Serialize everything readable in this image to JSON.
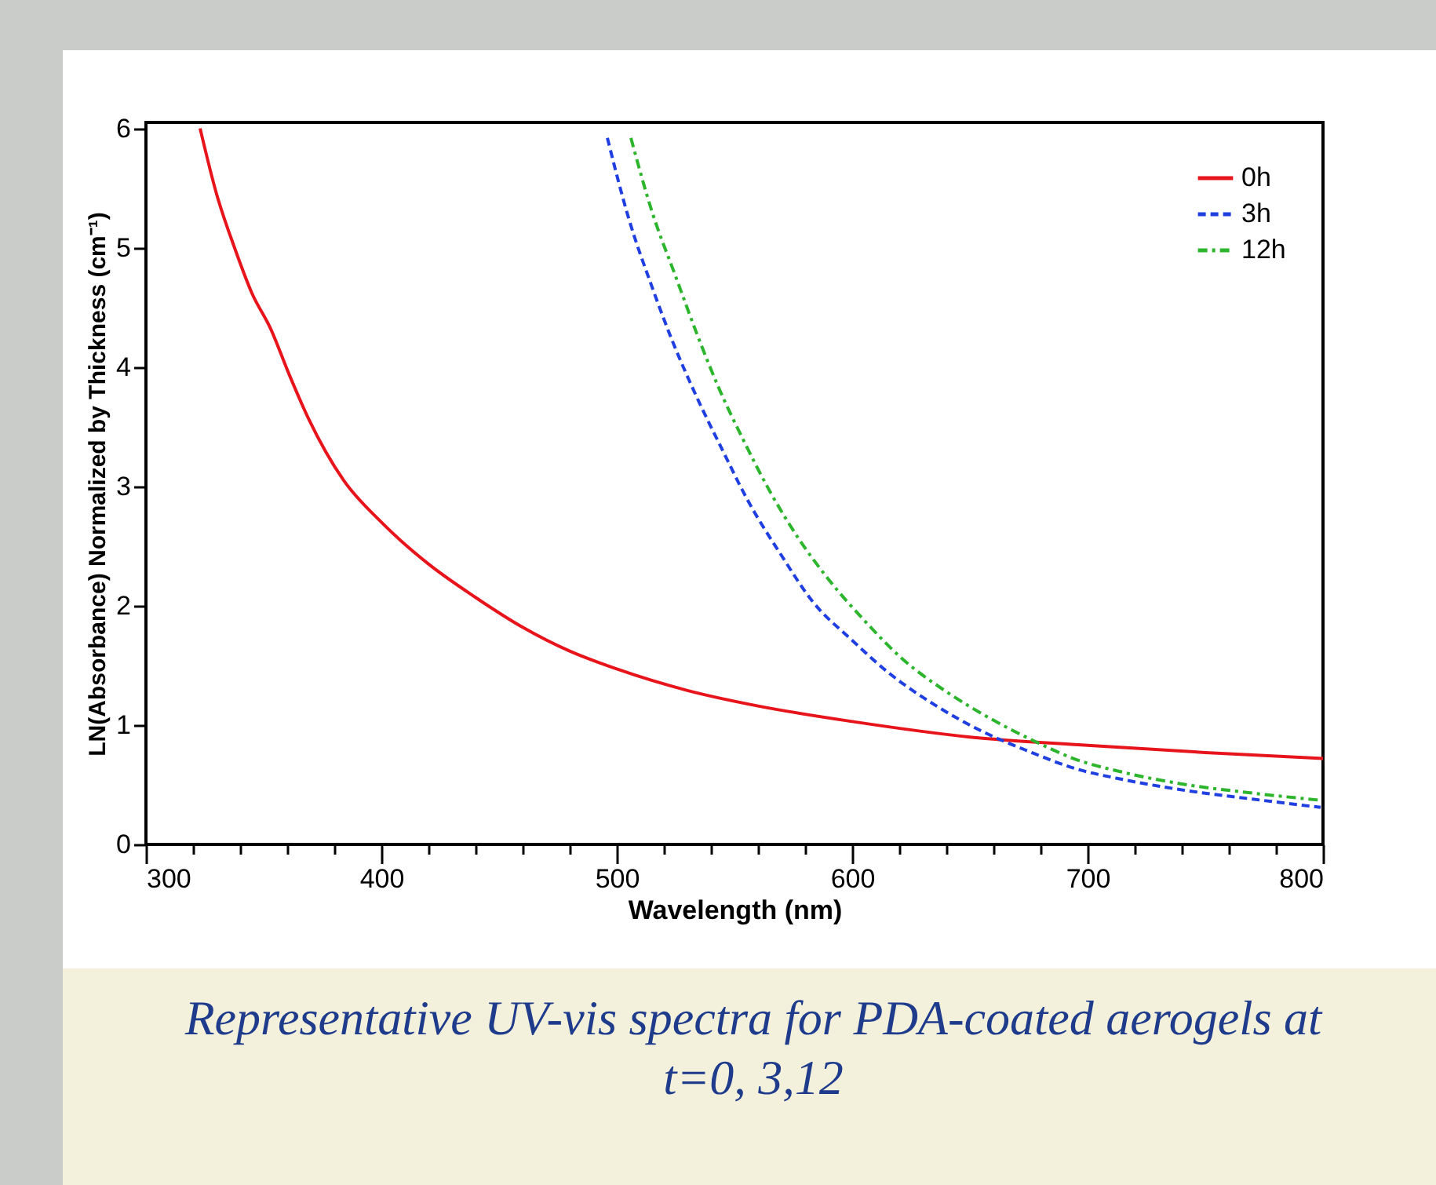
{
  "chart_data": {
    "type": "line",
    "xlabel": "Wavelength (nm)",
    "ylabel": "LN(Absorbance) Normalized by Thickness (cm⁻¹)",
    "xlim": [
      300,
      800
    ],
    "ylim": [
      0,
      6.05
    ],
    "xticks": [
      300,
      {
        "value": 320,
        "label": null
      },
      {
        "value": 340,
        "label": null
      },
      {
        "value": 360,
        "label": null
      },
      {
        "value": 380,
        "label": null
      },
      400,
      {
        "value": 420,
        "label": null
      },
      {
        "value": 440,
        "label": null
      },
      {
        "value": 460,
        "label": null
      },
      {
        "value": 480,
        "label": null
      },
      500,
      {
        "value": 520,
        "label": null
      },
      {
        "value": 540,
        "label": null
      },
      {
        "value": 560,
        "label": null
      },
      {
        "value": 580,
        "label": null
      },
      600,
      {
        "value": 620,
        "label": null
      },
      {
        "value": 640,
        "label": null
      },
      {
        "value": 660,
        "label": null
      },
      {
        "value": 680,
        "label": null
      },
      700,
      {
        "value": 720,
        "label": null
      },
      {
        "value": 740,
        "label": null
      },
      {
        "value": 760,
        "label": null
      },
      {
        "value": 780,
        "label": null
      },
      800
    ],
    "yticks": [
      0,
      1,
      2,
      3,
      4,
      5,
      6
    ],
    "grid": false,
    "legend": "top right",
    "series": [
      {
        "name": "0h",
        "color": "#e8141b",
        "line_style": "solid",
        "x": [
          323,
          330,
          338,
          345,
          353,
          361,
          369,
          384,
          400,
          420,
          440,
          460,
          480,
          500,
          530,
          560,
          600,
          650,
          700,
          750,
          800
        ],
        "values": [
          6.0,
          5.45,
          4.98,
          4.62,
          4.32,
          3.93,
          3.57,
          3.05,
          2.7,
          2.35,
          2.07,
          1.82,
          1.62,
          1.47,
          1.29,
          1.16,
          1.03,
          0.9,
          0.83,
          0.77,
          0.72
        ]
      },
      {
        "name": "3h",
        "color": "#1f3fe0",
        "line_style": "dashed",
        "x": [
          496,
          505,
          515,
          524,
          533,
          545,
          556,
          570,
          583,
          600,
          616,
          635,
          656,
          675,
          694,
          716,
          739,
          770,
          799
        ],
        "values": [
          5.92,
          5.25,
          4.67,
          4.2,
          3.79,
          3.3,
          2.87,
          2.42,
          2.04,
          1.71,
          1.43,
          1.17,
          0.94,
          0.78,
          0.64,
          0.54,
          0.46,
          0.38,
          0.31
        ]
      },
      {
        "name": "12h",
        "color": "#2db52d",
        "line_style": "dashdot",
        "x": [
          506,
          515,
          525,
          534,
          543,
          554,
          565,
          577,
          590,
          605,
          621,
          640,
          661,
          678,
          694,
          716,
          739,
          770,
          799
        ],
        "values": [
          5.92,
          5.3,
          4.76,
          4.28,
          3.84,
          3.38,
          2.96,
          2.57,
          2.22,
          1.88,
          1.56,
          1.28,
          1.03,
          0.86,
          0.72,
          0.6,
          0.51,
          0.43,
          0.37
        ]
      }
    ],
    "annotations": [
      "Representative UV-vis spectra for PDA-coated aerogels at t=0, 3,12"
    ]
  }
}
